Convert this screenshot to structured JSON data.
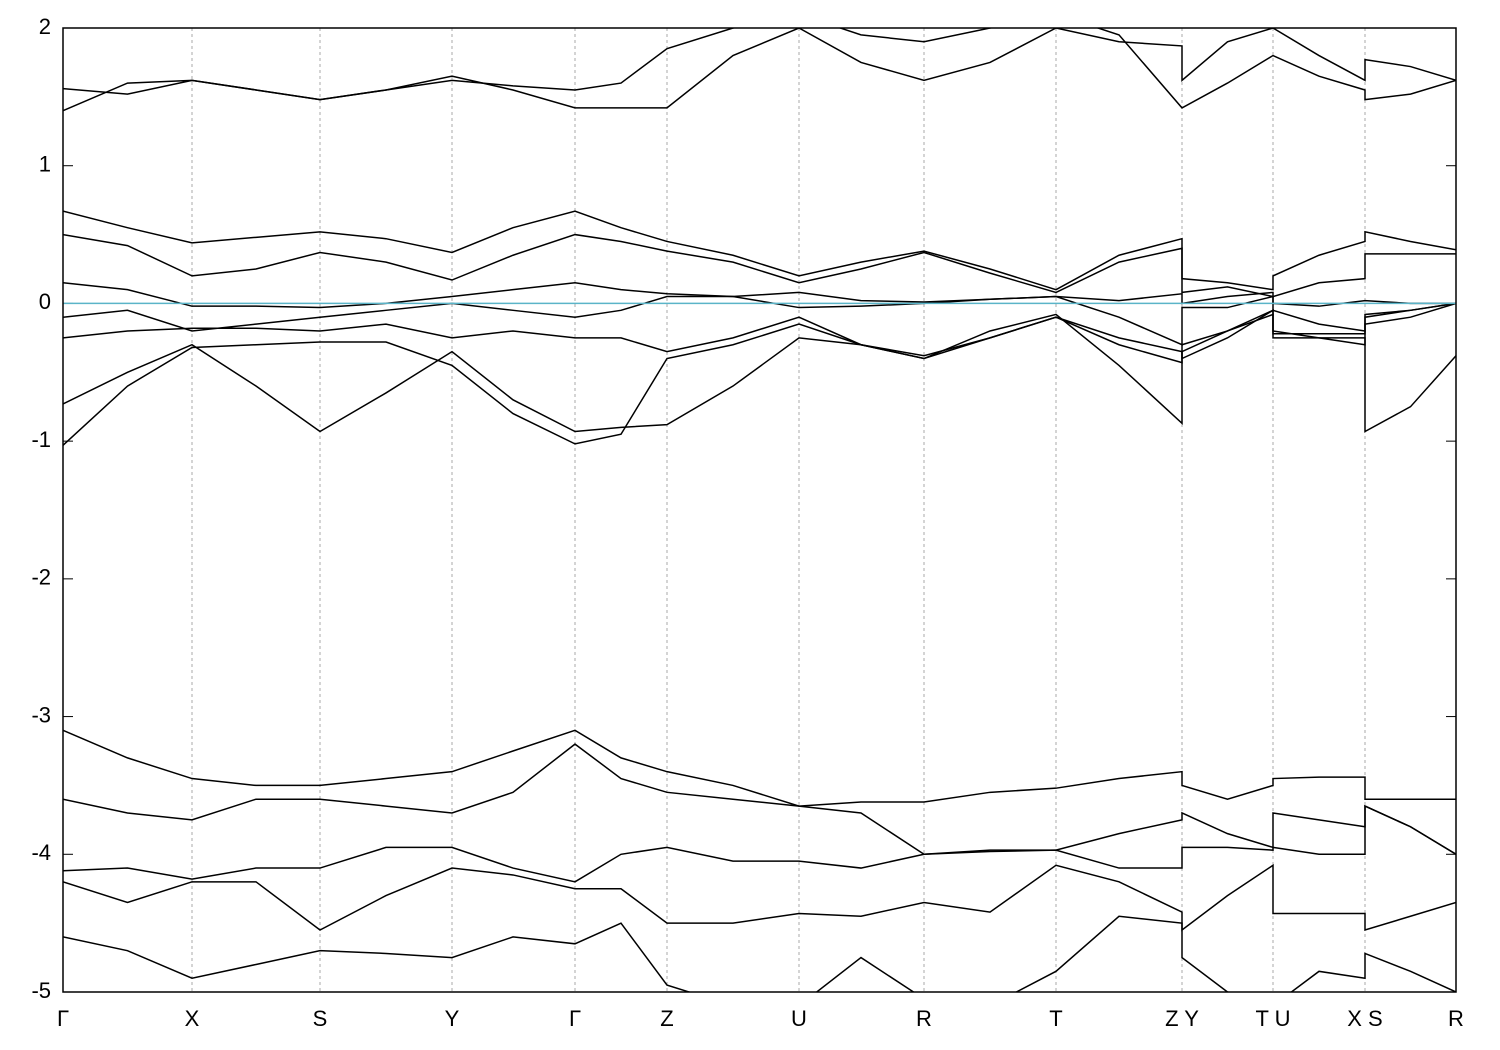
{
  "chart_data": {
    "type": "line",
    "x": [
      0,
      0.645,
      1.29,
      1.93,
      2.57,
      3.23,
      3.89,
      4.5,
      5.12,
      5.58,
      6.04,
      6.7,
      7.36,
      7.98,
      8.61,
      9.27,
      9.93,
      10.56,
      11.19,
      11.19,
      11.645,
      12.1,
      12.1,
      12.56,
      13.02,
      13.02,
      13.475,
      13.93
    ],
    "xlim": [
      0,
      13.93
    ],
    "xticks": [
      {
        "value": 0,
        "label": "Γ"
      },
      {
        "value": 1.29,
        "label": "X"
      },
      {
        "value": 2.57,
        "label": "S"
      },
      {
        "value": 3.89,
        "label": "Y"
      },
      {
        "value": 5.12,
        "label": "Γ"
      },
      {
        "value": 6.04,
        "label": "Z"
      },
      {
        "value": 7.36,
        "label": "U"
      },
      {
        "value": 8.61,
        "label": "R"
      },
      {
        "value": 9.93,
        "label": "T"
      },
      {
        "value": 11.19,
        "label": "Z Y"
      },
      {
        "value": 12.1,
        "label": "T U"
      },
      {
        "value": 13.02,
        "label": "X S"
      },
      {
        "value": 13.93,
        "label": "R"
      }
    ],
    "ylim": [
      -5,
      2
    ],
    "yticks": [
      -5,
      -4,
      -3,
      -2,
      -1,
      0,
      1,
      2
    ],
    "grid": true,
    "hline": {
      "value": 0,
      "color": "#5ab4c8"
    },
    "series": [
      {
        "color": "#000000",
        "values": [
          0.67,
          0.55,
          0.44,
          0.48,
          0.52,
          0.47,
          0.37,
          0.55,
          0.67,
          0.55,
          0.45,
          0.35,
          0.2,
          0.3,
          0.38,
          0.25,
          0.1,
          0.35,
          0.47,
          0.18,
          0.15,
          0.1,
          0.2,
          0.35,
          0.45,
          0.52,
          0.45,
          0.39
        ]
      },
      {
        "color": "#000000",
        "values": [
          0.5,
          0.42,
          0.2,
          0.25,
          0.37,
          0.3,
          0.17,
          0.35,
          0.5,
          0.45,
          0.38,
          0.3,
          0.15,
          0.25,
          0.37,
          0.22,
          0.08,
          0.3,
          0.4,
          0.08,
          0.12,
          0.05,
          0.05,
          0.15,
          0.18,
          0.36,
          0.36,
          0.36
        ]
      },
      {
        "color": "#000000",
        "values": [
          0.15,
          0.1,
          -0.02,
          -0.02,
          -0.03,
          0.0,
          0.05,
          0.1,
          0.15,
          0.1,
          0.07,
          0.05,
          0.08,
          0.02,
          0.01,
          0.03,
          0.05,
          0.02,
          0.07,
          0.0,
          0.05,
          0.08,
          0.0,
          -0.02,
          0.02,
          0.02,
          0.0,
          0.0
        ]
      },
      {
        "color": "#000000",
        "values": [
          -0.1,
          -0.05,
          -0.2,
          -0.15,
          -0.1,
          -0.05,
          0.0,
          -0.05,
          -0.1,
          -0.05,
          0.05,
          0.05,
          -0.03,
          -0.02,
          0.0,
          0.03,
          0.05,
          -0.1,
          -0.3,
          -0.03,
          -0.03,
          0.05,
          -0.05,
          -0.15,
          -0.2,
          -0.1,
          -0.05,
          0.0
        ]
      },
      {
        "color": "#000000",
        "values": [
          -0.25,
          -0.2,
          -0.18,
          -0.18,
          -0.2,
          -0.15,
          -0.25,
          -0.2,
          -0.25,
          -0.25,
          -0.35,
          -0.25,
          -0.1,
          -0.3,
          -0.38,
          -0.25,
          -0.1,
          -0.25,
          -0.35,
          -0.4,
          -0.25,
          -0.05,
          -0.2,
          -0.25,
          -0.3,
          -0.15,
          -0.1,
          0.0
        ]
      },
      {
        "color": "#000000",
        "values": [
          -0.73,
          -0.5,
          -0.3,
          -0.6,
          -0.93,
          -0.65,
          -0.35,
          -0.7,
          -0.93,
          -0.9,
          -0.88,
          -0.6,
          -0.25,
          -0.3,
          -0.4,
          -0.2,
          -0.08,
          -0.45,
          -0.87,
          -0.3,
          -0.2,
          -0.05,
          -0.25,
          -0.25,
          -0.25,
          -0.93,
          -0.75,
          -0.38
        ]
      },
      {
        "color": "#000000",
        "values": [
          -1.03,
          -0.6,
          -0.32,
          -0.3,
          -0.28,
          -0.28,
          -0.45,
          -0.8,
          -1.02,
          -0.95,
          -0.4,
          -0.3,
          -0.15,
          -0.3,
          -0.4,
          -0.25,
          -0.1,
          -0.3,
          -0.43,
          -0.35,
          -0.2,
          -0.08,
          -0.22,
          -0.22,
          -0.22,
          -0.08,
          -0.05,
          0.0
        ]
      },
      {
        "color": "#000000",
        "values": [
          1.4,
          1.6,
          1.62,
          1.55,
          1.48,
          1.55,
          1.65,
          1.55,
          1.42,
          1.42,
          1.42,
          1.8,
          2.0,
          1.75,
          1.62,
          1.75,
          2.0,
          1.9,
          1.87,
          1.62,
          1.9,
          2.0,
          2.0,
          1.8,
          1.62,
          1.77,
          1.72,
          1.62
        ]
      },
      {
        "color": "#000000",
        "values": [
          1.56,
          1.52,
          1.62,
          1.55,
          1.48,
          1.55,
          1.62,
          1.58,
          1.55,
          1.6,
          1.85,
          2.0,
          2.1,
          1.95,
          1.9,
          2.0,
          2.1,
          1.95,
          1.42,
          1.42,
          1.6,
          1.8,
          1.8,
          1.65,
          1.55,
          1.48,
          1.52,
          1.62
        ]
      },
      {
        "color": "#000000",
        "values": [
          -3.1,
          -3.3,
          -3.45,
          -3.5,
          -3.5,
          -3.45,
          -3.4,
          -3.25,
          -3.1,
          -3.3,
          -3.4,
          -3.5,
          -3.65,
          -3.62,
          -3.62,
          -3.55,
          -3.52,
          -3.45,
          -3.4,
          -3.5,
          -3.6,
          -3.5,
          -3.45,
          -3.44,
          -3.44,
          -3.6,
          -3.6,
          -3.6
        ]
      },
      {
        "color": "#000000",
        "values": [
          -3.6,
          -3.7,
          -3.75,
          -3.6,
          -3.6,
          -3.65,
          -3.7,
          -3.55,
          -3.2,
          -3.45,
          -3.55,
          -3.6,
          -3.65,
          -3.7,
          -4.0,
          -3.97,
          -3.97,
          -3.85,
          -3.75,
          -3.7,
          -3.85,
          -3.95,
          -3.7,
          -3.75,
          -3.8,
          -3.65,
          -3.8,
          -4.0
        ]
      },
      {
        "color": "#000000",
        "values": [
          -4.12,
          -4.1,
          -4.18,
          -4.1,
          -4.1,
          -3.95,
          -3.95,
          -4.1,
          -4.2,
          -4.0,
          -3.95,
          -4.05,
          -4.05,
          -4.1,
          -4.0,
          -3.98,
          -3.97,
          -4.1,
          -4.1,
          -3.95,
          -3.95,
          -3.97,
          -3.95,
          -4.0,
          -4.0,
          -3.65,
          -3.8,
          -4.0
        ]
      },
      {
        "color": "#000000",
        "values": [
          -4.2,
          -4.35,
          -4.2,
          -4.2,
          -4.55,
          -4.3,
          -4.1,
          -4.15,
          -4.25,
          -4.25,
          -4.5,
          -4.5,
          -4.43,
          -4.45,
          -4.35,
          -4.42,
          -4.08,
          -4.2,
          -4.42,
          -4.55,
          -4.3,
          -4.08,
          -4.43,
          -4.43,
          -4.43,
          -4.55,
          -4.45,
          -4.35
        ]
      },
      {
        "color": "#000000",
        "values": [
          -4.6,
          -4.7,
          -4.9,
          -4.8,
          -4.7,
          -4.72,
          -4.75,
          -4.6,
          -4.65,
          -4.5,
          -4.95,
          -5.1,
          -5.1,
          -4.75,
          -5.05,
          -5.1,
          -4.85,
          -4.45,
          -4.5,
          -4.75,
          -5.0,
          -5.1,
          -5.1,
          -4.85,
          -4.9,
          -4.72,
          -4.85,
          -5.0
        ]
      }
    ]
  }
}
